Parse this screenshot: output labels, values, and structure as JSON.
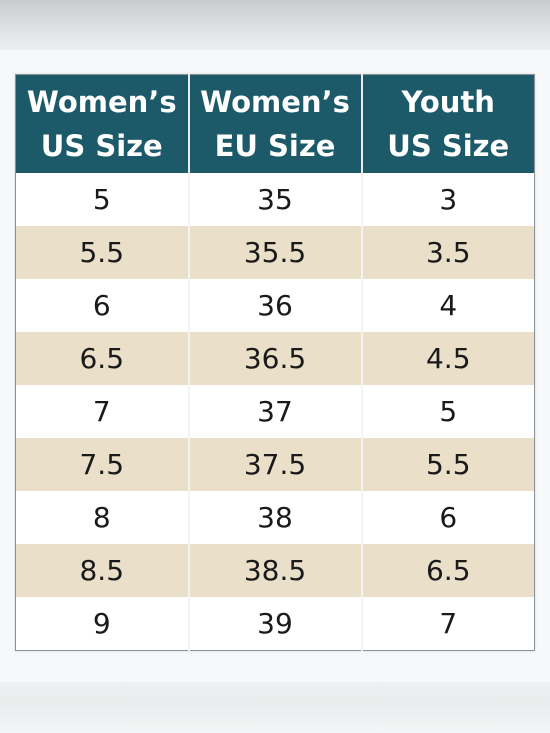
{
  "table": {
    "headers": [
      {
        "line1": "Women’s",
        "line2": "US Size"
      },
      {
        "line1": "Women’s",
        "line2": "EU Size"
      },
      {
        "line1": "Youth",
        "line2": "US Size"
      }
    ],
    "rows": [
      [
        "5",
        "35",
        "3"
      ],
      [
        "5.5",
        "35.5",
        "3.5"
      ],
      [
        "6",
        "36",
        "4"
      ],
      [
        "6.5",
        "36.5",
        "4.5"
      ],
      [
        "7",
        "37",
        "5"
      ],
      [
        "7.5",
        "37.5",
        "5.5"
      ],
      [
        "8",
        "38",
        "6"
      ],
      [
        "8.5",
        "38.5",
        "6.5"
      ],
      [
        "9",
        "39",
        "7"
      ]
    ]
  },
  "colors": {
    "header_bg": "#1d5a69",
    "header_text": "#ffffff",
    "stripe": "#eadfc8",
    "row_bg": "#ffffff"
  }
}
